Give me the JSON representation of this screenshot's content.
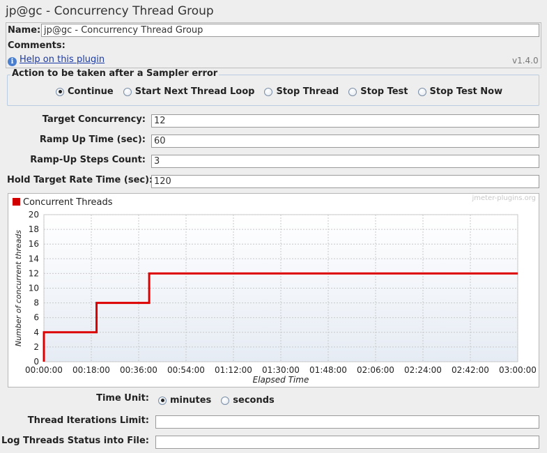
{
  "window_title": "jp@gc - Concurrency Thread Group",
  "name": {
    "label": "Name:",
    "value": "jp@gc - Concurrency Thread Group"
  },
  "comments": {
    "label": "Comments:"
  },
  "help": {
    "link": "Help on this plugin",
    "version": "v1.4.0",
    "icon": "info-icon"
  },
  "sampler_error": {
    "legend": "Action to be taken after a Sampler error",
    "options": [
      "Continue",
      "Start Next Thread Loop",
      "Stop Thread",
      "Stop Test",
      "Stop Test Now"
    ],
    "selected": "Continue"
  },
  "params": {
    "target_concurrency": {
      "label": "Target Concurrency:",
      "value": "12"
    },
    "ramp_up_time": {
      "label": "Ramp Up Time (sec):",
      "value": "60"
    },
    "ramp_up_steps": {
      "label": "Ramp-Up Steps Count:",
      "value": "3"
    },
    "hold_time": {
      "label": "Hold Target Rate Time (sec):",
      "value": "120"
    }
  },
  "chart_data": {
    "type": "line",
    "legend": "Concurrent Threads",
    "watermark": "jmeter-plugins.org",
    "xlabel": "Elapsed Time",
    "ylabel": "Number of concurrent threads",
    "ylim": [
      0,
      20
    ],
    "yticks": [
      "0",
      "2",
      "4",
      "6",
      "8",
      "10",
      "12",
      "14",
      "16",
      "18",
      "20"
    ],
    "xlim_minutes": [
      0,
      180
    ],
    "xticks": [
      "00:00:00",
      "00:18:00",
      "00:36:00",
      "00:54:00",
      "01:12:00",
      "01:30:00",
      "01:48:00",
      "02:06:00",
      "02:24:00",
      "02:42:00",
      "03:00:00"
    ],
    "series": [
      {
        "name": "Concurrent Threads",
        "color": "#dd0000",
        "x_minutes": [
          0,
          0,
          20,
          20,
          40,
          40,
          180
        ],
        "y": [
          0,
          4,
          4,
          8,
          8,
          12,
          12
        ]
      }
    ],
    "grid": true
  },
  "time_unit": {
    "label": "Time Unit:",
    "options": [
      "minutes",
      "seconds"
    ],
    "selected": "minutes"
  },
  "iterations_limit": {
    "label": "Thread Iterations Limit:",
    "value": ""
  },
  "log_threads": {
    "label": "Log Threads Status into File:",
    "value": ""
  }
}
